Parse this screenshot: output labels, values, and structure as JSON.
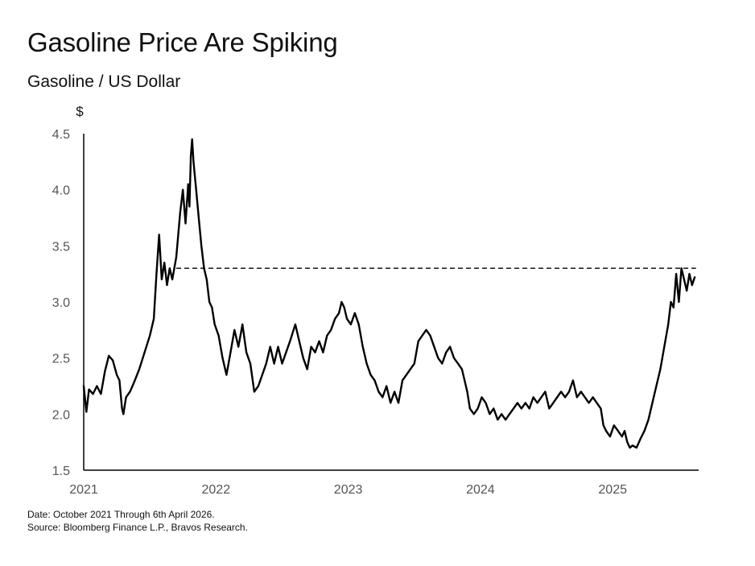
{
  "header": {
    "title": "Gasoline Price Are Spiking",
    "subtitle": "Gasoline / US Dollar"
  },
  "footer": {
    "date_note": "Date: October 2021 Through 6th April 2026.",
    "source_note": "Source: Bloomberg Finance L.P., Bravos Research."
  },
  "chart_data": {
    "type": "line",
    "title": "Gasoline Price Are Spiking",
    "subtitle": "Gasoline / US Dollar",
    "ylabel": "$",
    "xlabel": "",
    "x_tick_labels": [
      "2021",
      "2022",
      "2023",
      "2024",
      "2025"
    ],
    "y_ticks": [
      1.5,
      2.0,
      2.5,
      3.0,
      3.5,
      4.0,
      4.5
    ],
    "y_tick_labels": [
      "1.5",
      "2.0",
      "2.5",
      "3.0",
      "3.5",
      "4.0",
      "4.5"
    ],
    "ylim": [
      1.5,
      4.5
    ],
    "xlim": [
      2021.0,
      2025.65
    ],
    "grid": false,
    "legend": "none",
    "line_color": "#000000",
    "reference_line": {
      "y": 3.3,
      "x_start": 2021.7,
      "x_end": 2025.63,
      "style": "dashed"
    },
    "series": [
      {
        "values": [
          [
            2021.0,
            2.25
          ],
          [
            2021.02,
            2.02
          ],
          [
            2021.04,
            2.22
          ],
          [
            2021.07,
            2.18
          ],
          [
            2021.1,
            2.25
          ],
          [
            2021.13,
            2.18
          ],
          [
            2021.16,
            2.38
          ],
          [
            2021.19,
            2.52
          ],
          [
            2021.22,
            2.48
          ],
          [
            2021.25,
            2.35
          ],
          [
            2021.27,
            2.3
          ],
          [
            2021.29,
            2.05
          ],
          [
            2021.3,
            2.0
          ],
          [
            2021.32,
            2.15
          ],
          [
            2021.35,
            2.2
          ],
          [
            2021.38,
            2.28
          ],
          [
            2021.42,
            2.4
          ],
          [
            2021.46,
            2.55
          ],
          [
            2021.5,
            2.7
          ],
          [
            2021.53,
            2.85
          ],
          [
            2021.55,
            3.25
          ],
          [
            2021.57,
            3.6
          ],
          [
            2021.59,
            3.2
          ],
          [
            2021.61,
            3.35
          ],
          [
            2021.63,
            3.15
          ],
          [
            2021.65,
            3.3
          ],
          [
            2021.67,
            3.2
          ],
          [
            2021.7,
            3.4
          ],
          [
            2021.73,
            3.8
          ],
          [
            2021.75,
            4.0
          ],
          [
            2021.77,
            3.7
          ],
          [
            2021.79,
            4.05
          ],
          [
            2021.8,
            3.85
          ],
          [
            2021.81,
            4.3
          ],
          [
            2021.82,
            4.45
          ],
          [
            2021.83,
            4.25
          ],
          [
            2021.85,
            4.0
          ],
          [
            2021.87,
            3.75
          ],
          [
            2021.89,
            3.5
          ],
          [
            2021.91,
            3.3
          ],
          [
            2021.93,
            3.2
          ],
          [
            2021.95,
            3.0
          ],
          [
            2021.97,
            2.95
          ],
          [
            2021.99,
            2.8
          ],
          [
            2022.02,
            2.7
          ],
          [
            2022.05,
            2.5
          ],
          [
            2022.08,
            2.35
          ],
          [
            2022.11,
            2.55
          ],
          [
            2022.14,
            2.75
          ],
          [
            2022.17,
            2.6
          ],
          [
            2022.2,
            2.8
          ],
          [
            2022.23,
            2.55
          ],
          [
            2022.26,
            2.45
          ],
          [
            2022.29,
            2.2
          ],
          [
            2022.32,
            2.25
          ],
          [
            2022.35,
            2.35
          ],
          [
            2022.38,
            2.45
          ],
          [
            2022.41,
            2.6
          ],
          [
            2022.44,
            2.45
          ],
          [
            2022.47,
            2.6
          ],
          [
            2022.5,
            2.45
          ],
          [
            2022.53,
            2.55
          ],
          [
            2022.56,
            2.65
          ],
          [
            2022.6,
            2.8
          ],
          [
            2022.63,
            2.65
          ],
          [
            2022.66,
            2.5
          ],
          [
            2022.69,
            2.4
          ],
          [
            2022.72,
            2.6
          ],
          [
            2022.75,
            2.55
          ],
          [
            2022.78,
            2.65
          ],
          [
            2022.81,
            2.55
          ],
          [
            2022.84,
            2.7
          ],
          [
            2022.87,
            2.75
          ],
          [
            2022.9,
            2.85
          ],
          [
            2022.93,
            2.9
          ],
          [
            2022.95,
            3.0
          ],
          [
            2022.97,
            2.95
          ],
          [
            2022.99,
            2.85
          ],
          [
            2023.02,
            2.8
          ],
          [
            2023.05,
            2.9
          ],
          [
            2023.08,
            2.8
          ],
          [
            2023.11,
            2.6
          ],
          [
            2023.14,
            2.45
          ],
          [
            2023.17,
            2.35
          ],
          [
            2023.2,
            2.3
          ],
          [
            2023.23,
            2.2
          ],
          [
            2023.26,
            2.15
          ],
          [
            2023.29,
            2.25
          ],
          [
            2023.32,
            2.1
          ],
          [
            2023.35,
            2.2
          ],
          [
            2023.38,
            2.1
          ],
          [
            2023.41,
            2.3
          ],
          [
            2023.44,
            2.35
          ],
          [
            2023.47,
            2.4
          ],
          [
            2023.5,
            2.45
          ],
          [
            2023.53,
            2.65
          ],
          [
            2023.56,
            2.7
          ],
          [
            2023.59,
            2.75
          ],
          [
            2023.62,
            2.7
          ],
          [
            2023.65,
            2.6
          ],
          [
            2023.68,
            2.5
          ],
          [
            2023.71,
            2.45
          ],
          [
            2023.74,
            2.55
          ],
          [
            2023.77,
            2.6
          ],
          [
            2023.8,
            2.5
          ],
          [
            2023.83,
            2.45
          ],
          [
            2023.86,
            2.4
          ],
          [
            2023.88,
            2.3
          ],
          [
            2023.9,
            2.2
          ],
          [
            2023.92,
            2.05
          ],
          [
            2023.95,
            2.0
          ],
          [
            2023.98,
            2.05
          ],
          [
            2024.01,
            2.15
          ],
          [
            2024.04,
            2.1
          ],
          [
            2024.07,
            2.0
          ],
          [
            2024.1,
            2.05
          ],
          [
            2024.13,
            1.95
          ],
          [
            2024.16,
            2.0
          ],
          [
            2024.19,
            1.95
          ],
          [
            2024.22,
            2.0
          ],
          [
            2024.25,
            2.05
          ],
          [
            2024.28,
            2.1
          ],
          [
            2024.31,
            2.05
          ],
          [
            2024.34,
            2.1
          ],
          [
            2024.37,
            2.05
          ],
          [
            2024.4,
            2.15
          ],
          [
            2024.43,
            2.1
          ],
          [
            2024.46,
            2.15
          ],
          [
            2024.49,
            2.2
          ],
          [
            2024.52,
            2.05
          ],
          [
            2024.55,
            2.1
          ],
          [
            2024.58,
            2.15
          ],
          [
            2024.61,
            2.2
          ],
          [
            2024.64,
            2.15
          ],
          [
            2024.67,
            2.2
          ],
          [
            2024.7,
            2.3
          ],
          [
            2024.73,
            2.15
          ],
          [
            2024.76,
            2.2
          ],
          [
            2024.79,
            2.15
          ],
          [
            2024.82,
            2.1
          ],
          [
            2024.85,
            2.15
          ],
          [
            2024.88,
            2.1
          ],
          [
            2024.91,
            2.05
          ],
          [
            2024.93,
            1.9
          ],
          [
            2024.95,
            1.85
          ],
          [
            2024.98,
            1.8
          ],
          [
            2025.01,
            1.9
          ],
          [
            2025.04,
            1.85
          ],
          [
            2025.07,
            1.8
          ],
          [
            2025.09,
            1.85
          ],
          [
            2025.11,
            1.75
          ],
          [
            2025.13,
            1.7
          ],
          [
            2025.15,
            1.72
          ],
          [
            2025.18,
            1.7
          ],
          [
            2025.21,
            1.78
          ],
          [
            2025.24,
            1.85
          ],
          [
            2025.27,
            1.95
          ],
          [
            2025.3,
            2.1
          ],
          [
            2025.33,
            2.25
          ],
          [
            2025.36,
            2.4
          ],
          [
            2025.39,
            2.6
          ],
          [
            2025.42,
            2.8
          ],
          [
            2025.44,
            3.0
          ],
          [
            2025.46,
            2.95
          ],
          [
            2025.48,
            3.25
          ],
          [
            2025.5,
            3.0
          ],
          [
            2025.52,
            3.3
          ],
          [
            2025.54,
            3.2
          ],
          [
            2025.56,
            3.1
          ],
          [
            2025.58,
            3.25
          ],
          [
            2025.6,
            3.15
          ],
          [
            2025.62,
            3.22
          ]
        ]
      }
    ]
  }
}
